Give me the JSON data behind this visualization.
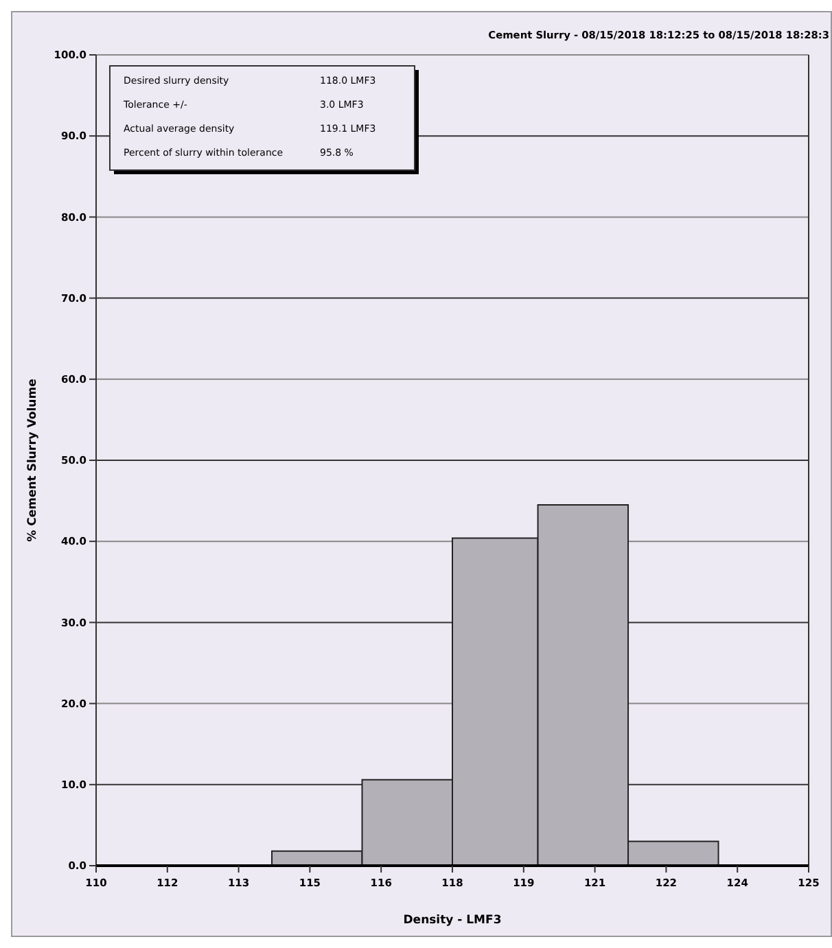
{
  "chart_data": {
    "type": "histogram",
    "title": "Cement Slurry - 08/15/2018 18:12:25 to 08/15/2018 18:28:3",
    "xlabel": "Density - LMF3",
    "ylabel": "% Cement Slurry Volume",
    "bins": [
      113.7,
      115.6,
      117.5,
      119.3,
      121.2,
      123.1
    ],
    "values": [
      1.8,
      10.6,
      40.4,
      44.5,
      3.0
    ],
    "color": "#b3b0b8",
    "xlim": [
      110,
      125
    ],
    "xticks": [
      110,
      {
        "value": 111.5,
        "label": "112"
      },
      113,
      {
        "value": 114.5,
        "label": "115"
      },
      116,
      {
        "value": 117.5,
        "label": "118"
      },
      119,
      {
        "value": 120.5,
        "label": "121"
      },
      122,
      {
        "value": 123.5,
        "label": "124"
      },
      125
    ],
    "ylim": [
      0,
      100
    ],
    "yticks": [
      {
        "value": 0,
        "label": "0.0"
      },
      {
        "value": 10,
        "label": "10.0"
      },
      {
        "value": 20,
        "label": "20.0"
      },
      {
        "value": 30,
        "label": "30.0"
      },
      {
        "value": 40,
        "label": "40.0"
      },
      {
        "value": 50,
        "label": "50.0"
      },
      {
        "value": 60,
        "label": "60.0"
      },
      {
        "value": 70,
        "label": "70.0"
      },
      {
        "value": 80,
        "label": "80.0"
      },
      {
        "value": 90,
        "label": "90.0"
      },
      {
        "value": 100,
        "label": "100.0"
      }
    ],
    "grid": "y",
    "annotations": [
      "Desired slurry density",
      "118.0 LMF3",
      "Tolerance +/-",
      "3.0 LMF3",
      "Actual average density",
      "119.1 LMF3",
      "Percent of slurry within tolerance",
      "95.8 %"
    ]
  }
}
